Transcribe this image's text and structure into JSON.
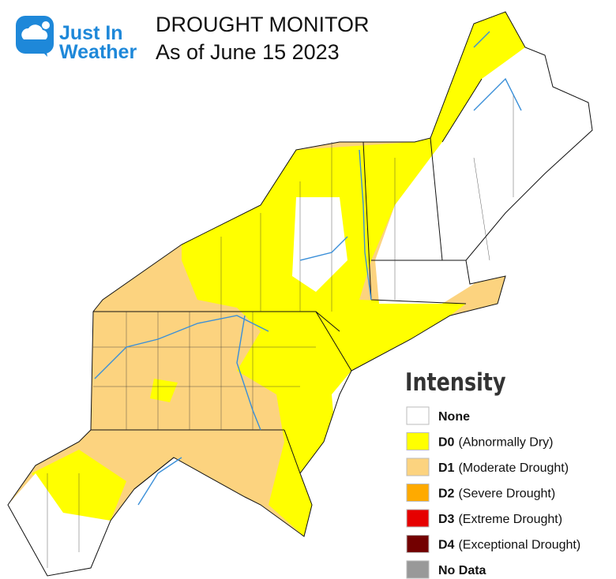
{
  "logo": {
    "line1": "Just In",
    "line2": "Weather"
  },
  "header": {
    "title": "DROUGHT MONITOR",
    "subtitle": "As of June 15 2023"
  },
  "legend": {
    "title": "Intensity",
    "items": [
      {
        "code": "None",
        "color": "#ffffff"
      },
      {
        "code": "D0",
        "label": "(Abnormally Dry)",
        "color": "#ffff00"
      },
      {
        "code": "D1",
        "label": "(Moderate Drought)",
        "color": "#fcd37f"
      },
      {
        "code": "D2",
        "label": "(Severe Drought)",
        "color": "#ffaa00"
      },
      {
        "code": "D3",
        "label": "(Extreme Drought)",
        "color": "#e60000"
      },
      {
        "code": "D4",
        "label": "(Exceptional Drought)",
        "color": "#730000"
      },
      {
        "code": "No Data",
        "color": "#999999"
      }
    ]
  }
}
